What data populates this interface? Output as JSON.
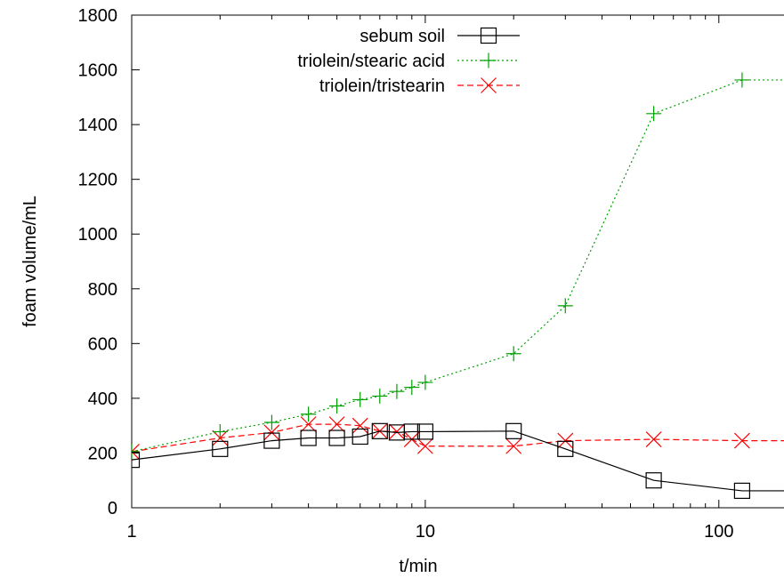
{
  "chart_data": {
    "type": "line",
    "xlabel": "t/min",
    "ylabel": "foam volume/mL",
    "xscale": "log",
    "xlim": [
      1,
      180
    ],
    "ylim": [
      0,
      1800
    ],
    "xticks": [
      1,
      10,
      100
    ],
    "xtick_labels": [
      "1",
      "10",
      "100"
    ],
    "yticks": [
      0,
      200,
      400,
      600,
      800,
      1000,
      1200,
      1400,
      1600,
      1800
    ],
    "ytick_labels": [
      "0",
      "200",
      "400",
      "600",
      "800",
      "1000",
      "1200",
      "1400",
      "1600",
      "1800"
    ],
    "grid": false,
    "legend_position": "top-right",
    "series": [
      {
        "name": "sebum soil",
        "color": "#000000",
        "line_style": "solid",
        "marker": "square",
        "x": [
          1,
          2,
          3,
          4,
          5,
          6,
          7,
          8,
          9,
          10,
          20,
          30,
          60,
          120,
          180
        ],
        "y": [
          175,
          215,
          245,
          255,
          255,
          260,
          280,
          275,
          278,
          278,
          280,
          215,
          100,
          62,
          62
        ]
      },
      {
        "name": "triolein/stearic acid",
        "color": "#00a000",
        "line_style": "dotted",
        "marker": "plus",
        "x": [
          1,
          2,
          3,
          4,
          5,
          6,
          7,
          8,
          9,
          10,
          20,
          30,
          60,
          120,
          180
        ],
        "y": [
          205,
          278,
          312,
          342,
          372,
          395,
          408,
          425,
          440,
          458,
          563,
          738,
          1440,
          1563,
          1563
        ]
      },
      {
        "name": "triolein/tristearin",
        "color": "#ff0000",
        "line_style": "dashed",
        "marker": "x",
        "x": [
          1,
          2,
          3,
          4,
          5,
          6,
          7,
          8,
          9,
          10,
          20,
          30,
          60,
          120,
          180
        ],
        "y": [
          205,
          255,
          275,
          305,
          305,
          300,
          280,
          278,
          250,
          225,
          225,
          245,
          250,
          245,
          245
        ]
      }
    ]
  }
}
